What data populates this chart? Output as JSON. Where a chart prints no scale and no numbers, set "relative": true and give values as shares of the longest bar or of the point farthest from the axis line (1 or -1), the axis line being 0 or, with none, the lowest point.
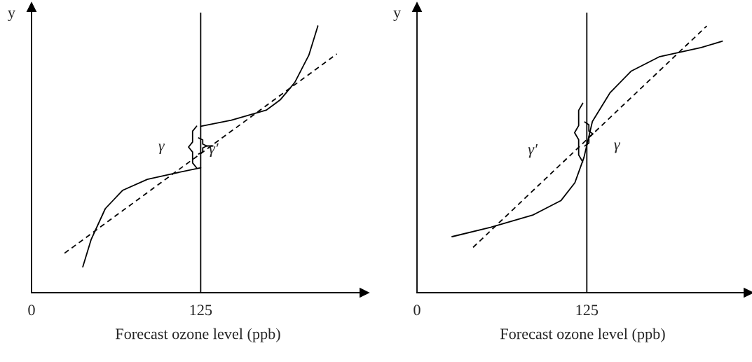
{
  "chart_data": [
    {
      "type": "line",
      "relative": true,
      "xlabel": "Forecast ozone level (ppb)",
      "ylabel": "y",
      "xlim": [
        0,
        246
      ],
      "xticks": [
        0,
        125
      ],
      "marker": "none",
      "series": [
        {
          "color": "#000000",
          "line_style": "solid",
          "x": [
            37.9,
            44.1,
            54.5,
            67.4,
            85.6,
            106,
            125
          ],
          "values": [
            0.097,
            0.2,
            0.315,
            0.384,
            0.425,
            0.448,
            0.468
          ]
        },
        {
          "color": "#000000",
          "line_style": "solid",
          "x": [
            125,
            147.7,
            173.7,
            184,
            194.5,
            204.9,
            211.6
          ],
          "values": [
            0.624,
            0.647,
            0.685,
            0.724,
            0.788,
            0.89,
            1.0
          ]
        },
        {
          "color": "#000000",
          "line_style": "dashed",
          "x": [
            24.4,
            225.6
          ],
          "values": [
            0.148,
            0.895
          ]
        }
      ],
      "ref_lines": [
        {
          "axis": "x",
          "value": 125,
          "color": "#000000",
          "line_style": "solid"
        }
      ],
      "annotations": [
        "γ",
        "γ′"
      ]
    },
    {
      "type": "line",
      "relative": true,
      "xlabel": "Forecast ozone level (ppb)",
      "ylabel": "y",
      "xlim": [
        0,
        244
      ],
      "xticks": [
        0,
        125
      ],
      "marker": "none",
      "series": [
        {
          "color": "#000000",
          "line_style": "solid",
          "x": [
            25.8,
            54.2,
            85.2,
            105.9,
            116.2,
            122.9,
            129.1,
            142,
            157.5,
            178.2,
            209.2,
            224.7
          ],
          "values": [
            0.21,
            0.245,
            0.291,
            0.345,
            0.412,
            0.507,
            0.642,
            0.749,
            0.83,
            0.884,
            0.919,
            0.943
          ]
        },
        {
          "color": "#000000",
          "line_style": "dashed",
          "x": [
            41.3,
            213.3
          ],
          "values": [
            0.17,
            1.0
          ]
        }
      ],
      "ref_lines": [
        {
          "axis": "x",
          "value": 125,
          "color": "#000000",
          "line_style": "solid"
        }
      ],
      "annotations": [
        "γ′",
        "γ"
      ]
    }
  ]
}
